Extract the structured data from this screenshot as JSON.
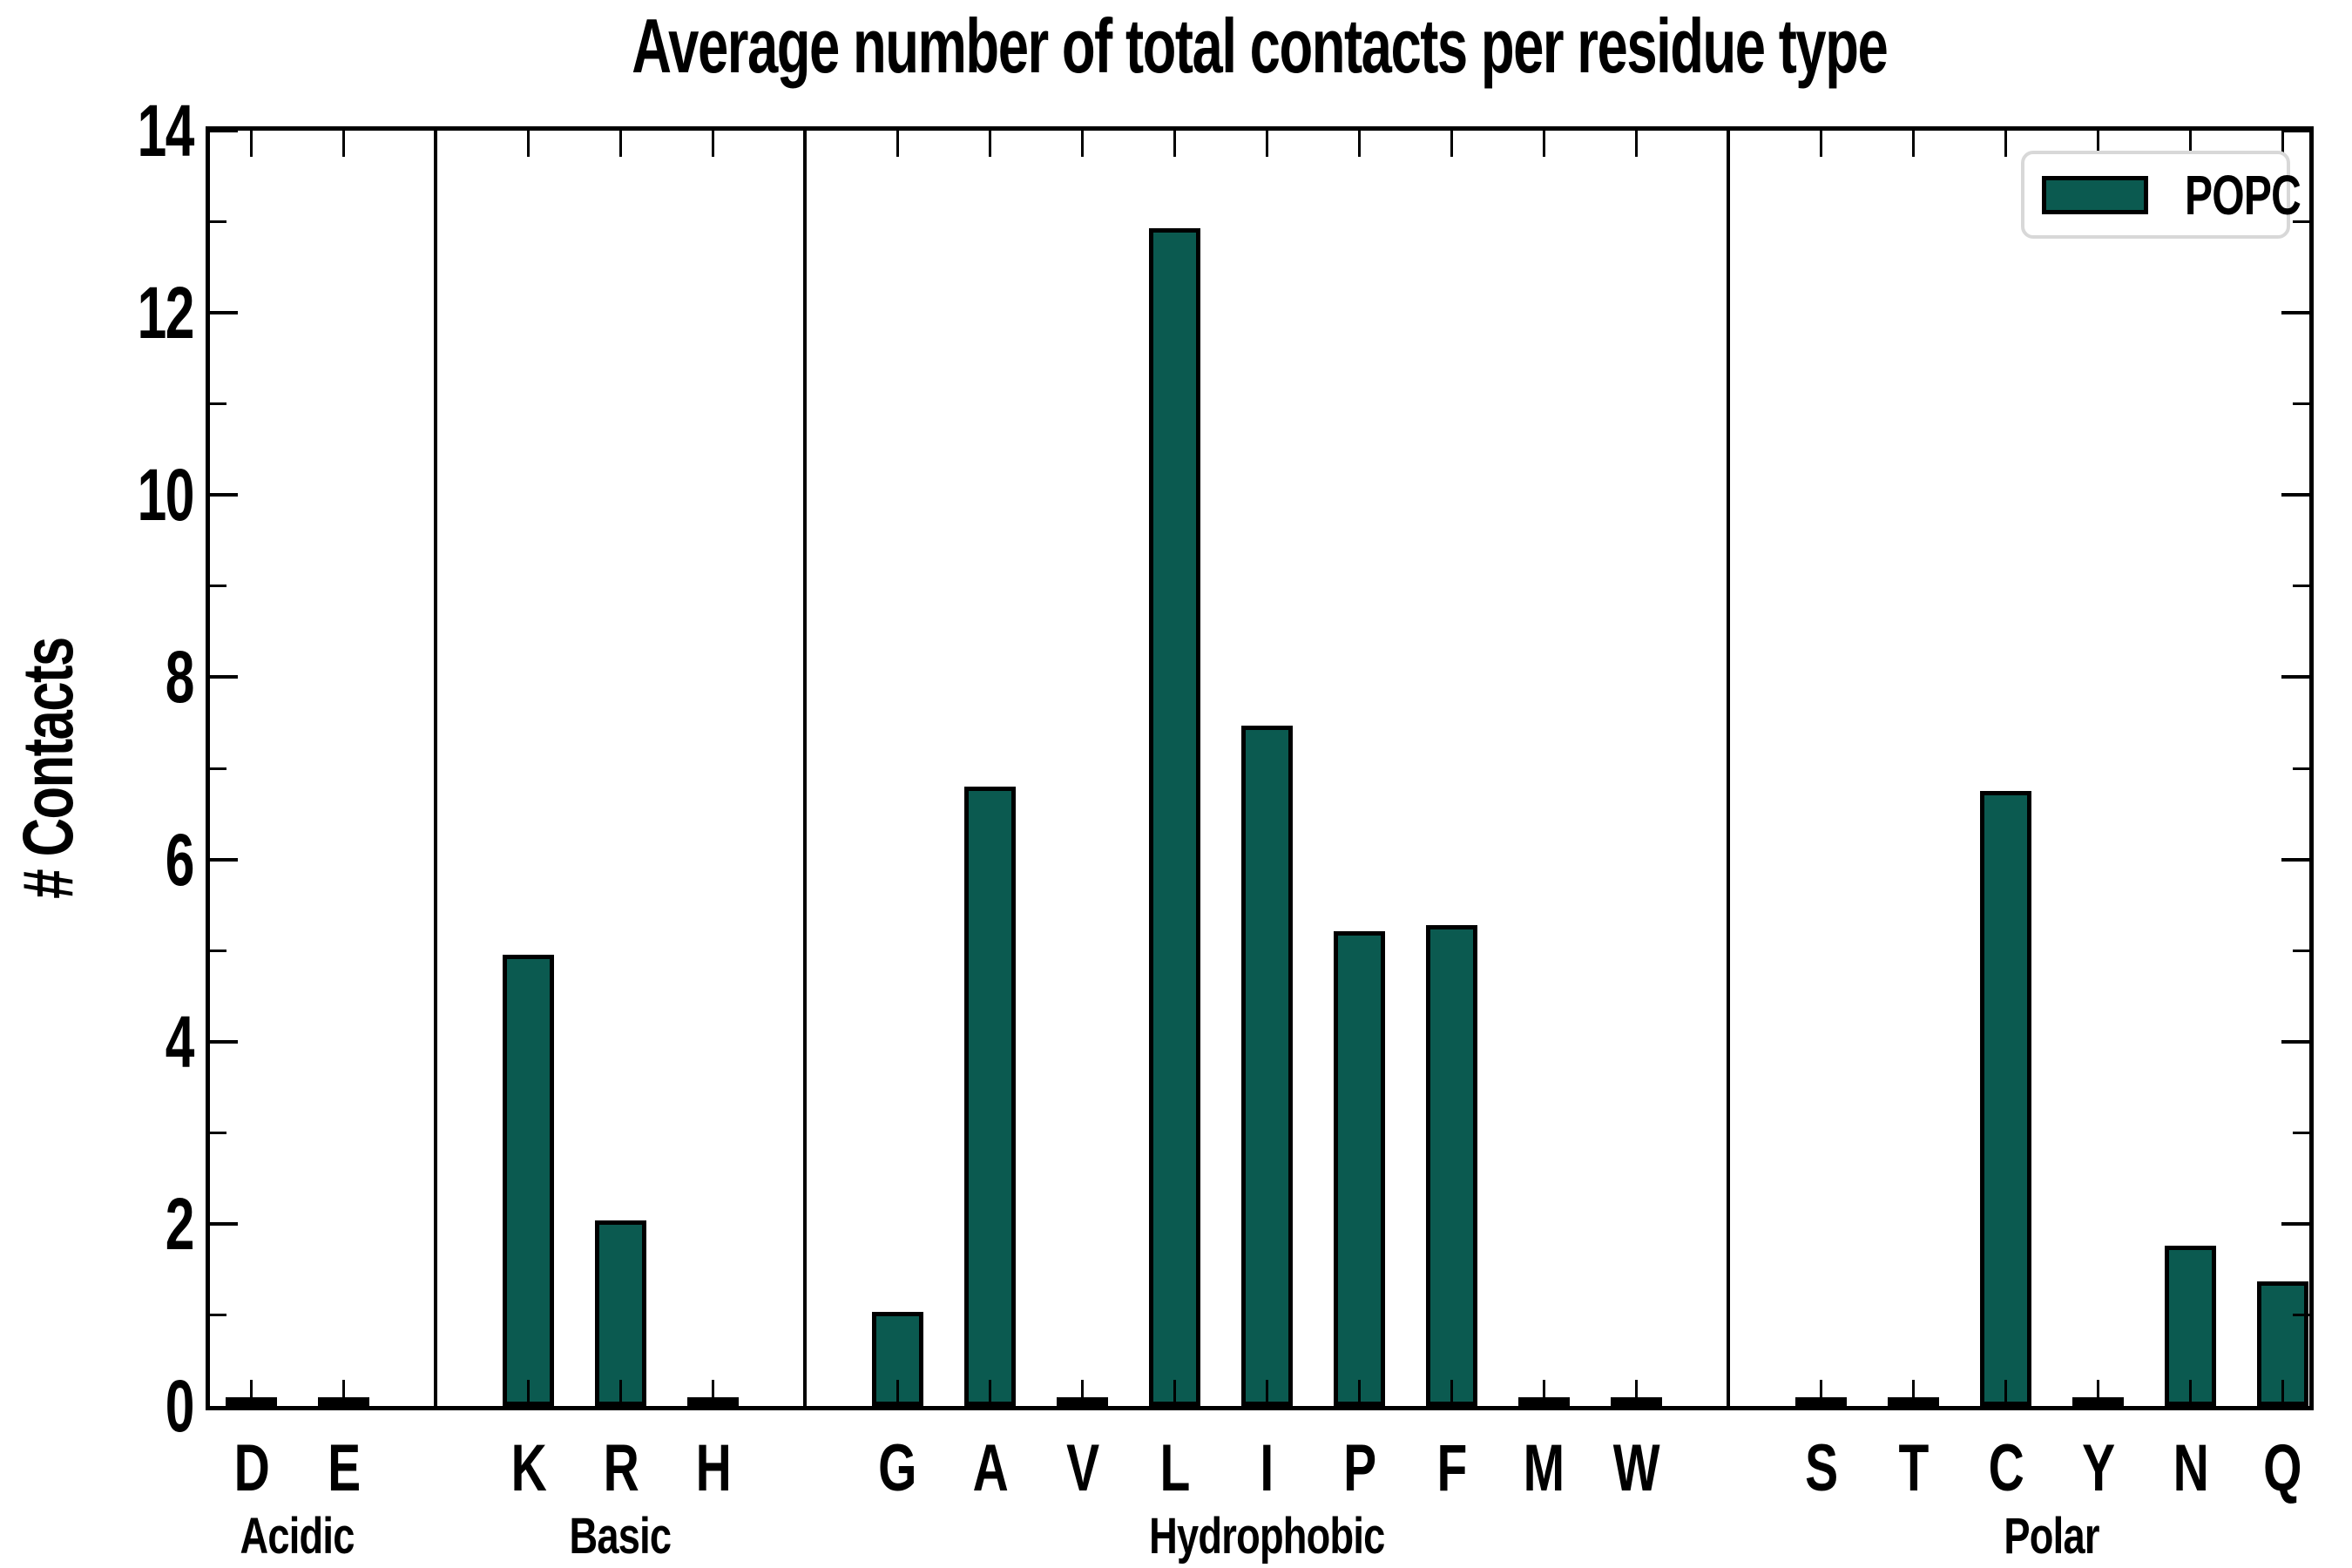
{
  "title": "Average number of total contacts per residue type",
  "ylabel": "# Contacts",
  "colors": {
    "bar_fill": "#0b5a50",
    "bar_edge": "#000000",
    "axis": "#000000",
    "legend_border": "#d8d8d8"
  },
  "legend": {
    "entries": [
      "POPC"
    ]
  },
  "chart_data": {
    "type": "bar",
    "title": "Average number of total contacts per residue type",
    "xlabel": "",
    "ylabel": "# Contacts",
    "ylim": [
      0,
      14
    ],
    "y_major_ticks": [
      0,
      2,
      4,
      6,
      8,
      10,
      12,
      14
    ],
    "y_minor_ticks": [
      1,
      3,
      5,
      7,
      9,
      11,
      13
    ],
    "grid": false,
    "legend": {
      "position": "upper right",
      "entries": [
        "POPC"
      ]
    },
    "categories": [
      "D",
      "E",
      "K",
      "R",
      "H",
      "G",
      "A",
      "V",
      "L",
      "I",
      "P",
      "F",
      "M",
      "W",
      "S",
      "T",
      "C",
      "Y",
      "N",
      "Q"
    ],
    "series": [
      {
        "name": "POPC",
        "values": [
          0.02,
          0.02,
          4.95,
          2.04,
          0.02,
          1.03,
          6.8,
          0.04,
          12.93,
          7.47,
          5.21,
          5.28,
          0.02,
          0.04,
          0.02,
          0.03,
          6.75,
          0.03,
          1.76,
          1.37
        ]
      }
    ],
    "groups": [
      {
        "label": "Acidic",
        "categories": [
          "D",
          "E"
        ],
        "values": [
          0.02,
          0.02
        ]
      },
      {
        "label": "Basic",
        "categories": [
          "K",
          "R",
          "H"
        ],
        "values": [
          4.95,
          2.04,
          0.02
        ]
      },
      {
        "label": "Hydrophobic",
        "categories": [
          "G",
          "A",
          "V",
          "L",
          "I",
          "P",
          "F",
          "M",
          "W"
        ],
        "values": [
          1.03,
          6.8,
          0.04,
          12.93,
          7.47,
          5.21,
          5.28,
          0.02,
          0.04
        ]
      },
      {
        "label": "Polar",
        "categories": [
          "S",
          "T",
          "C",
          "Y",
          "N",
          "Q"
        ],
        "values": [
          0.02,
          0.03,
          6.75,
          0.03,
          1.76,
          1.37
        ]
      }
    ]
  }
}
